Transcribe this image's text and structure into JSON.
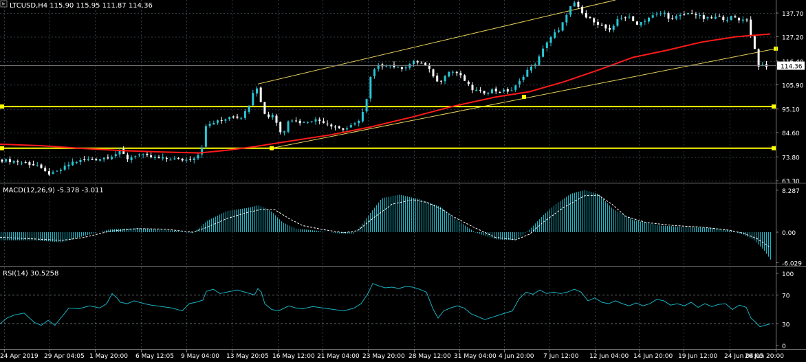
{
  "chart_data": [
    {
      "type": "candlestick",
      "title": "LTCUSD,H4  115.90 115.95 111.87 114.36",
      "last_price_label": "114.36",
      "y_ticks": [
        "137.70",
        "127.20",
        "116.40",
        "105.90",
        "95.10",
        "84.60",
        "73.80",
        "63.30"
      ],
      "ylim": [
        63.3,
        143.5
      ],
      "close_path": [
        [
          0,
          72.5
        ],
        [
          20,
          72
        ],
        [
          38,
          71
        ],
        [
          55,
          70
        ],
        [
          62,
          67.5
        ],
        [
          75,
          66
        ],
        [
          90,
          68.5
        ],
        [
          105,
          71.5
        ],
        [
          125,
          72.5
        ],
        [
          145,
          73
        ],
        [
          165,
          74.5
        ],
        [
          175,
          76.5
        ],
        [
          185,
          73
        ],
        [
          200,
          75
        ],
        [
          215,
          74
        ],
        [
          230,
          73.2
        ],
        [
          250,
          73
        ],
        [
          270,
          72.5
        ],
        [
          285,
          74
        ],
        [
          292,
          76
        ],
        [
          300,
          88
        ],
        [
          310,
          89
        ],
        [
          322,
          90
        ],
        [
          335,
          92
        ],
        [
          350,
          91.5
        ],
        [
          360,
          95
        ],
        [
          368,
          103
        ],
        [
          374,
          105
        ],
        [
          380,
          97
        ],
        [
          388,
          91
        ],
        [
          395,
          93
        ],
        [
          400,
          92
        ],
        [
          405,
          85
        ],
        [
          412,
          84.5
        ],
        [
          420,
          91
        ],
        [
          428,
          90
        ],
        [
          440,
          89
        ],
        [
          455,
          90.5
        ],
        [
          470,
          89.5
        ],
        [
          485,
          87.5
        ],
        [
          500,
          86
        ],
        [
          515,
          88
        ],
        [
          525,
          91.5
        ],
        [
          533,
          99
        ],
        [
          540,
          111
        ],
        [
          550,
          114
        ],
        [
          560,
          115
        ],
        [
          570,
          114.5
        ],
        [
          580,
          113
        ],
        [
          590,
          114
        ],
        [
          600,
          116
        ],
        [
          610,
          116
        ],
        [
          620,
          114
        ],
        [
          630,
          110
        ],
        [
          638,
          106
        ],
        [
          645,
          110
        ],
        [
          655,
          112
        ],
        [
          665,
          111
        ],
        [
          675,
          108
        ],
        [
          685,
          104
        ],
        [
          695,
          103
        ],
        [
          705,
          102.5
        ],
        [
          715,
          103.5
        ],
        [
          725,
          103
        ],
        [
          735,
          103
        ],
        [
          745,
          103.5
        ],
        [
          755,
          107
        ],
        [
          765,
          112
        ],
        [
          775,
          114
        ],
        [
          785,
          118.5
        ],
        [
          795,
          125
        ],
        [
          805,
          128.5
        ],
        [
          815,
          130
        ],
        [
          820,
          135
        ],
        [
          828,
          140
        ],
        [
          835,
          142
        ],
        [
          842,
          139.5
        ],
        [
          850,
          136
        ],
        [
          860,
          135
        ],
        [
          870,
          133
        ],
        [
          880,
          131
        ],
        [
          890,
          129
        ],
        [
          895,
          134.5
        ],
        [
          905,
          136
        ],
        [
          915,
          135.5
        ],
        [
          925,
          133
        ],
        [
          935,
          134
        ],
        [
          945,
          136
        ],
        [
          955,
          137
        ],
        [
          965,
          138
        ],
        [
          975,
          135
        ],
        [
          985,
          136
        ],
        [
          995,
          137
        ],
        [
          1005,
          138
        ],
        [
          1015,
          136.5
        ],
        [
          1025,
          135
        ],
        [
          1035,
          135.5
        ],
        [
          1045,
          136
        ],
        [
          1055,
          135
        ],
        [
          1065,
          136
        ],
        [
          1075,
          134.5
        ],
        [
          1085,
          136
        ],
        [
          1090,
          129
        ],
        [
          1095,
          126
        ],
        [
          1100,
          117
        ],
        [
          1105,
          113
        ],
        [
          1110,
          114.5
        ],
        [
          1118,
          113
        ]
      ],
      "moving_average_path": [
        [
          0,
          79.5
        ],
        [
          60,
          78.8
        ],
        [
          120,
          77.6
        ],
        [
          180,
          76.6
        ],
        [
          240,
          76
        ],
        [
          290,
          75.6
        ],
        [
          330,
          76.8
        ],
        [
          370,
          78.4
        ],
        [
          420,
          80.8
        ],
        [
          480,
          83.6
        ],
        [
          540,
          87.2
        ],
        [
          600,
          91.6
        ],
        [
          660,
          96.4
        ],
        [
          720,
          100.4
        ],
        [
          770,
          102.8
        ],
        [
          820,
          107.2
        ],
        [
          870,
          112.4
        ],
        [
          920,
          118
        ],
        [
          970,
          121.2
        ],
        [
          1020,
          124.8
        ],
        [
          1070,
          127.2
        ],
        [
          1120,
          128.4
        ]
      ],
      "horizontal_levels": [
        96.2,
        77.7
      ],
      "channel_upper": [
        [
          375,
          106.2
        ],
        [
          895,
          143.5
        ]
      ],
      "channel_lower": [
        [
          395,
          77.7
        ],
        [
          1128,
          121.9
        ]
      ],
      "ma_markers": [
        [
          395,
          77.7
        ],
        [
          762,
          100.5
        ]
      ]
    },
    {
      "type": "histogram",
      "title": "MACD(12,26,9) -5.378 -3.011",
      "y_ticks": [
        "8.287",
        "0.00",
        "-6.029"
      ],
      "ylim": [
        -6.029,
        8.287
      ],
      "macd_path": [
        [
          0,
          -1.6
        ],
        [
          30,
          -1.6
        ],
        [
          60,
          -1.7
        ],
        [
          90,
          -2
        ],
        [
          120,
          -0.8
        ],
        [
          160,
          0.6
        ],
        [
          200,
          0.8
        ],
        [
          240,
          0.5
        ],
        [
          280,
          -0.2
        ],
        [
          300,
          2.2
        ],
        [
          330,
          4.2
        ],
        [
          360,
          4.8
        ],
        [
          375,
          5.3
        ],
        [
          385,
          4.8
        ],
        [
          395,
          4
        ],
        [
          410,
          2
        ],
        [
          430,
          0.7
        ],
        [
          460,
          0.3
        ],
        [
          490,
          -0.2
        ],
        [
          515,
          -0.3
        ],
        [
          535,
          3.3
        ],
        [
          555,
          6.7
        ],
        [
          580,
          7.4
        ],
        [
          610,
          6.5
        ],
        [
          640,
          5
        ],
        [
          660,
          2.8
        ],
        [
          690,
          0
        ],
        [
          720,
          -1.4
        ],
        [
          750,
          -1.6
        ],
        [
          770,
          0.6
        ],
        [
          790,
          3.4
        ],
        [
          810,
          5.8
        ],
        [
          830,
          7.6
        ],
        [
          850,
          8.3
        ],
        [
          870,
          7.5
        ],
        [
          890,
          4.7
        ],
        [
          920,
          2.4
        ],
        [
          960,
          1.3
        ],
        [
          1000,
          1
        ],
        [
          1040,
          0.8
        ],
        [
          1060,
          0.3
        ],
        [
          1080,
          -0.4
        ],
        [
          1095,
          -1.5
        ],
        [
          1110,
          -3.5
        ],
        [
          1120,
          -5.4
        ]
      ],
      "signal_path": [
        [
          0,
          -1
        ],
        [
          60,
          -1.4
        ],
        [
          90,
          -1.6
        ],
        [
          120,
          -1.1
        ],
        [
          160,
          0.2
        ],
        [
          200,
          0.7
        ],
        [
          240,
          0.6
        ],
        [
          280,
          0
        ],
        [
          300,
          0.9
        ],
        [
          330,
          2.7
        ],
        [
          360,
          3.9
        ],
        [
          380,
          4.5
        ],
        [
          400,
          4.4
        ],
        [
          420,
          2.7
        ],
        [
          440,
          1.3
        ],
        [
          470,
          0.5
        ],
        [
          500,
          -0.1
        ],
        [
          520,
          0.3
        ],
        [
          545,
          3
        ],
        [
          570,
          5.5
        ],
        [
          600,
          6.4
        ],
        [
          620,
          5.9
        ],
        [
          640,
          4.7
        ],
        [
          660,
          3
        ],
        [
          690,
          0.9
        ],
        [
          720,
          -1
        ],
        [
          750,
          -1.5
        ],
        [
          770,
          -0.4
        ],
        [
          790,
          2
        ],
        [
          820,
          4.9
        ],
        [
          850,
          7.2
        ],
        [
          870,
          7.3
        ],
        [
          890,
          5.5
        ],
        [
          910,
          3.1
        ],
        [
          940,
          1.9
        ],
        [
          980,
          1.3
        ],
        [
          1020,
          1
        ],
        [
          1060,
          0.4
        ],
        [
          1080,
          -0.2
        ],
        [
          1100,
          -1.2
        ],
        [
          1120,
          -3
        ]
      ]
    },
    {
      "type": "line",
      "title": "RSI(14) 30.5258",
      "y_ticks": [
        "100",
        "70",
        "30",
        "0"
      ],
      "ylim": [
        0,
        100
      ],
      "levels": [
        70,
        30
      ],
      "rsi_path": [
        [
          0,
          30
        ],
        [
          10,
          38
        ],
        [
          20,
          42
        ],
        [
          35,
          45
        ],
        [
          50,
          32
        ],
        [
          60,
          28
        ],
        [
          70,
          35
        ],
        [
          80,
          28
        ],
        [
          90,
          40
        ],
        [
          100,
          52
        ],
        [
          115,
          51
        ],
        [
          130,
          55
        ],
        [
          145,
          52
        ],
        [
          155,
          58
        ],
        [
          163,
          72
        ],
        [
          170,
          66
        ],
        [
          175,
          60
        ],
        [
          185,
          58
        ],
        [
          195,
          62
        ],
        [
          210,
          58
        ],
        [
          220,
          56
        ],
        [
          235,
          54
        ],
        [
          250,
          52
        ],
        [
          265,
          48
        ],
        [
          275,
          58
        ],
        [
          285,
          60
        ],
        [
          295,
          63
        ],
        [
          300,
          75
        ],
        [
          310,
          78
        ],
        [
          320,
          72
        ],
        [
          330,
          74
        ],
        [
          345,
          77
        ],
        [
          360,
          73
        ],
        [
          370,
          70
        ],
        [
          375,
          79
        ],
        [
          380,
          74
        ],
        [
          385,
          58
        ],
        [
          395,
          50
        ],
        [
          405,
          48
        ],
        [
          420,
          55
        ],
        [
          430,
          52
        ],
        [
          440,
          51
        ],
        [
          455,
          54
        ],
        [
          470,
          52
        ],
        [
          485,
          50
        ],
        [
          500,
          48
        ],
        [
          515,
          52
        ],
        [
          525,
          58
        ],
        [
          535,
          72
        ],
        [
          542,
          86
        ],
        [
          550,
          83
        ],
        [
          560,
          80
        ],
        [
          570,
          81
        ],
        [
          580,
          79
        ],
        [
          590,
          82
        ],
        [
          600,
          81
        ],
        [
          610,
          78
        ],
        [
          620,
          74
        ],
        [
          630,
          50
        ],
        [
          637,
          38
        ],
        [
          645,
          48
        ],
        [
          655,
          52
        ],
        [
          665,
          55
        ],
        [
          675,
          52
        ],
        [
          685,
          44
        ],
        [
          695,
          40
        ],
        [
          705,
          36
        ],
        [
          715,
          39
        ],
        [
          725,
          42
        ],
        [
          735,
          45
        ],
        [
          745,
          48
        ],
        [
          755,
          65
        ],
        [
          765,
          74
        ],
        [
          775,
          71
        ],
        [
          785,
          77
        ],
        [
          795,
          72
        ],
        [
          805,
          74
        ],
        [
          815,
          72
        ],
        [
          825,
          74
        ],
        [
          835,
          78
        ],
        [
          845,
          74
        ],
        [
          855,
          62
        ],
        [
          865,
          66
        ],
        [
          875,
          60
        ],
        [
          885,
          58
        ],
        [
          895,
          62
        ],
        [
          905,
          58
        ],
        [
          915,
          55
        ],
        [
          925,
          59
        ],
        [
          935,
          55
        ],
        [
          945,
          58
        ],
        [
          955,
          64
        ],
        [
          965,
          62
        ],
        [
          975,
          56
        ],
        [
          985,
          58
        ],
        [
          995,
          55
        ],
        [
          1005,
          60
        ],
        [
          1015,
          53
        ],
        [
          1025,
          58
        ],
        [
          1035,
          54
        ],
        [
          1045,
          57
        ],
        [
          1055,
          58
        ],
        [
          1065,
          50
        ],
        [
          1075,
          56
        ],
        [
          1085,
          53
        ],
        [
          1092,
          38
        ],
        [
          1098,
          33
        ],
        [
          1105,
          26
        ],
        [
          1112,
          28
        ],
        [
          1120,
          30
        ]
      ]
    }
  ],
  "x_axis": {
    "tick_labels": [
      "24 Apr 2019",
      "29 Apr 04:05",
      "1 May 20:00",
      "6 May 12:05",
      "9 May 04:00",
      "13 May 20:05",
      "16 May 12:00",
      "21 May 04:00",
      "23 May 20:00",
      "28 May 12:00",
      "31 May 04:00",
      "4 Jun 20:00",
      "7 Jun 12:00",
      "12 Jun 04:00",
      "14 Jun 20:00",
      "19 Jun 12:00",
      "24 Jun 04:05",
      "26 Jun 20:00"
    ]
  },
  "colors": {
    "background": "#000000",
    "grid": "#2e3c44",
    "axis": "#808080",
    "candle_up": "#29c6d6",
    "candle_down": "#ffffff",
    "moving_average": "#ff1a1a",
    "level_line": "#ffff00",
    "channel": "#e6d05a",
    "macd_hist": "#1ab7c7",
    "signal": "#ffffff",
    "rsi": "#1ab0c0",
    "text": "#ffffff"
  }
}
